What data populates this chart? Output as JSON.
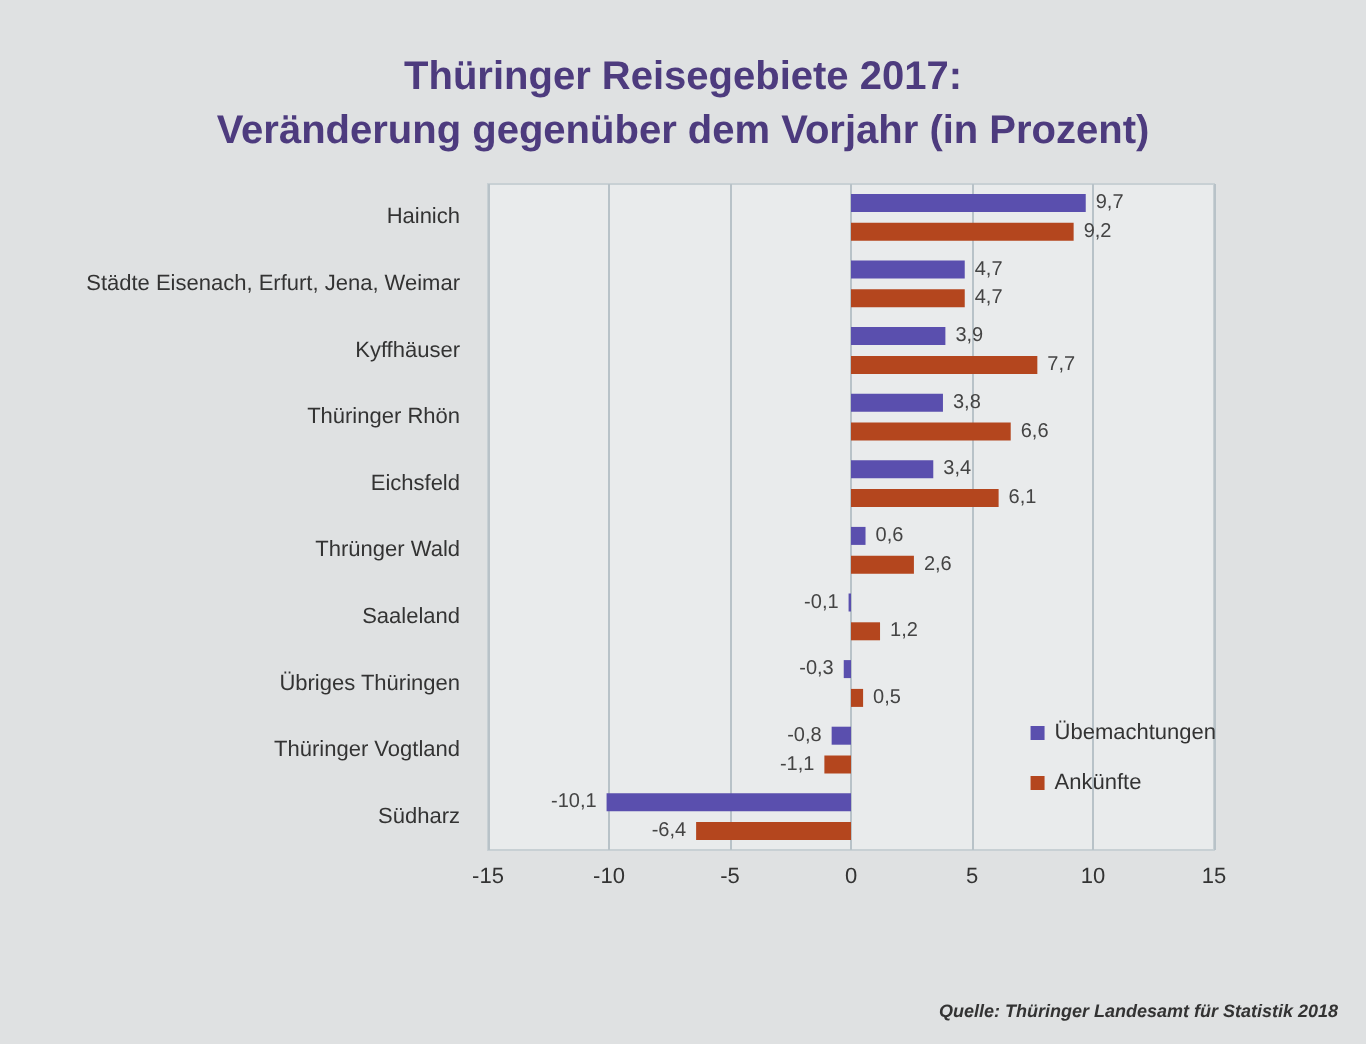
{
  "chart_data": {
    "type": "bar",
    "orientation": "horizontal",
    "title": "Thüringer Reisegebiete 2017:\nVeränderung gegenüber dem Vorjahr (in Prozent)",
    "categories": [
      "Hainich",
      "Städte Eisenach, Erfurt, Jena, Weimar",
      "Kyffhäuser",
      "Thüringer Rhön",
      "Eichsfeld",
      "Thrünger Wald",
      "Saaleland",
      "Übriges Thüringen",
      "Thüringer Vogtland",
      "Südharz"
    ],
    "series": [
      {
        "name": "Übemachtungen",
        "color": "#5a4fae",
        "values": [
          9.7,
          4.7,
          3.9,
          3.8,
          3.4,
          0.6,
          -0.1,
          -0.3,
          -0.8,
          -10.1
        ],
        "value_labels": [
          "9,7",
          "4,7",
          "3,9",
          "3,8",
          "3,4",
          "0,6",
          "-0,1",
          "-0,3",
          "-0,8",
          "-10,1"
        ]
      },
      {
        "name": "Ankünfte",
        "color": "#b4461e",
        "values": [
          9.2,
          4.7,
          7.7,
          6.6,
          6.1,
          2.6,
          1.2,
          0.5,
          -1.1,
          -6.4
        ],
        "value_labels": [
          "9,2",
          "4,7",
          "7,7",
          "6,6",
          "6,1",
          "2,6",
          "1,2",
          "0,5",
          "-1,1",
          "-6,4"
        ]
      }
    ],
    "xlim": [
      -15,
      15
    ],
    "xticks": [
      -15,
      -10,
      -5,
      0,
      5,
      10,
      15
    ],
    "grid": "x",
    "legend": "bottom right",
    "annotations": [
      "Quelle: Thüringer Landesamt für Statistik 2018"
    ]
  }
}
